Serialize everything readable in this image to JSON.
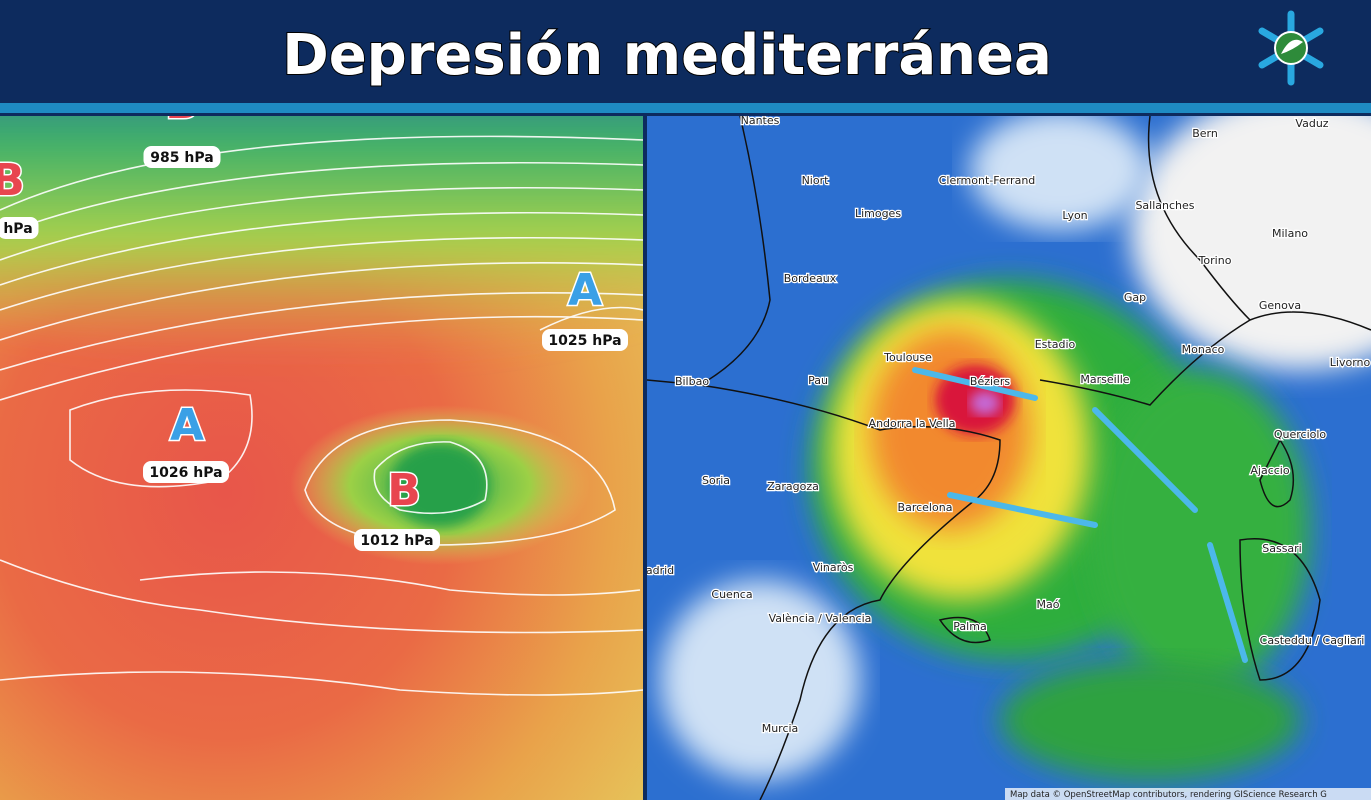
{
  "header": {
    "title": "Depresión mediterránea"
  },
  "pressure_map": {
    "labels": [
      {
        "symbol": "B",
        "pressure": "985 hPa"
      },
      {
        "symbol": "B",
        "pressure": "hPa"
      },
      {
        "symbol": "A",
        "pressure": "1025 hPa"
      },
      {
        "symbol": "A",
        "pressure": "1026 hPa"
      },
      {
        "symbol": "B",
        "pressure": "1012 hPa"
      }
    ]
  },
  "rain_map": {
    "cities": [
      "Nantes",
      "Bern",
      "Vaduz",
      "Niort",
      "Limoges",
      "Clermont-Ferrand",
      "Lyon",
      "Sallanches",
      "Milano",
      "Bordeaux",
      "Torino",
      "Gap",
      "Genova",
      "Estadio",
      "Monaco",
      "Livorno",
      "Toulouse",
      "Pau",
      "Bilbao",
      "Béziers",
      "Marseille",
      "Andorra la Vella",
      "Querciolo",
      "Ajaccio",
      "Soria",
      "Zaragoza",
      "Barcelona",
      "Sassari",
      "adrid",
      "Vinaròs",
      "Cuenca",
      "València / Valencia",
      "Maó",
      "Palma",
      "Casteddu / Cagliari",
      "Murcia"
    ],
    "attribution": "Map data © OpenStreetMap contributors, rendering GIScience Research G"
  }
}
